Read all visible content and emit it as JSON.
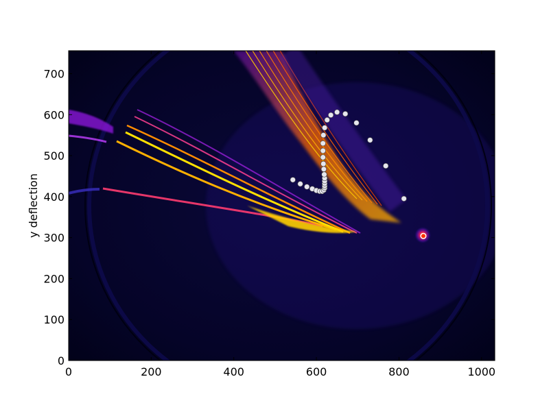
{
  "chart_data": {
    "type": "scatter",
    "title": "",
    "xlabel": "",
    "ylabel": "y deflection",
    "xlim": [
      0,
      1032
    ],
    "ylim": [
      0,
      756
    ],
    "x_ticks": [
      0,
      200,
      400,
      600,
      800,
      1000
    ],
    "y_ticks": [
      0,
      100,
      200,
      300,
      400,
      500,
      600,
      700
    ],
    "x_tick_labels": [
      "0",
      "200",
      "400",
      "600",
      "800",
      "1000"
    ],
    "y_tick_labels": [
      "0",
      "100",
      "200",
      "300",
      "400",
      "500",
      "600",
      "700"
    ],
    "grid": false,
    "background": "false-color detector image (dark blue/black with magenta, orange and yellow traces)",
    "marker_color": "#e6e6ee",
    "marker_edge_color": "#444444",
    "highlight_marker_color": "#ff3300",
    "series": [
      {
        "points": [
          {
            "x": 543,
            "y": 441
          },
          {
            "x": 561,
            "y": 431
          },
          {
            "x": 577,
            "y": 424
          },
          {
            "x": 590,
            "y": 419
          },
          {
            "x": 600,
            "y": 415
          },
          {
            "x": 608,
            "y": 413
          },
          {
            "x": 614,
            "y": 413
          },
          {
            "x": 618,
            "y": 416
          },
          {
            "x": 620,
            "y": 421
          },
          {
            "x": 620,
            "y": 426
          },
          {
            "x": 620,
            "y": 432
          },
          {
            "x": 620,
            "y": 438
          },
          {
            "x": 620,
            "y": 445
          },
          {
            "x": 619,
            "y": 454
          },
          {
            "x": 618,
            "y": 467
          },
          {
            "x": 617,
            "y": 480
          },
          {
            "x": 616,
            "y": 496
          },
          {
            "x": 616,
            "y": 512
          },
          {
            "x": 616,
            "y": 530
          },
          {
            "x": 617,
            "y": 550
          },
          {
            "x": 620,
            "y": 568
          },
          {
            "x": 626,
            "y": 587
          },
          {
            "x": 635,
            "y": 599
          },
          {
            "x": 650,
            "y": 606
          },
          {
            "x": 670,
            "y": 602
          },
          {
            "x": 697,
            "y": 580
          },
          {
            "x": 730,
            "y": 538
          },
          {
            "x": 768,
            "y": 475
          },
          {
            "x": 812,
            "y": 395
          },
          {
            "x": 859,
            "y": 304
          }
        ]
      }
    ]
  }
}
